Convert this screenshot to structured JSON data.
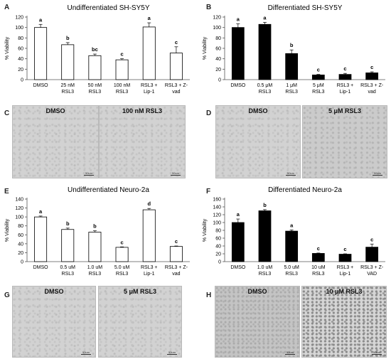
{
  "panels": {
    "A": "A",
    "B": "B",
    "C": "C",
    "D": "D",
    "E": "E",
    "F": "F",
    "G": "G",
    "H": "H"
  },
  "images": {
    "C": [
      {
        "label": "DMSO",
        "scale": "50um"
      },
      {
        "label": "100 nM RSL3",
        "scale": "50um"
      }
    ],
    "D": [
      {
        "label": "DMSO",
        "scale": "50um"
      },
      {
        "label": "5 μM RSL3",
        "scale": "50um"
      }
    ],
    "G": [
      {
        "label": "DMSO",
        "scale": "50um"
      },
      {
        "label": "5 μM RSL3",
        "scale": "50um"
      }
    ],
    "H": [
      {
        "label": "DMSO",
        "scale": "50um"
      },
      {
        "label": "10 μM RSL3",
        "scale": "50um"
      }
    ]
  },
  "chart_data": [
    {
      "panel": "A",
      "type": "bar",
      "title": "Undifferentiated SH-SY5Y",
      "ylabel": "% Viability",
      "ylim": [
        0,
        120
      ],
      "yticks": [
        0,
        20,
        40,
        60,
        80,
        100,
        120
      ],
      "bar_color": "#ffffff",
      "categories": [
        [
          "DMSO"
        ],
        [
          "25 nM",
          "RSL3"
        ],
        [
          "50 nM",
          "RSL3"
        ],
        [
          "100 nM",
          "RSL3"
        ],
        [
          "RSL3 +",
          "Lip-1"
        ],
        [
          "RSL3 + Z-",
          "vad"
        ]
      ],
      "values": [
        100,
        67,
        46,
        38,
        101,
        51
      ],
      "errors": [
        6,
        4,
        3,
        2,
        8,
        12
      ],
      "letters": [
        "a",
        "b",
        "bc",
        "c",
        "a",
        "c"
      ]
    },
    {
      "panel": "B",
      "type": "bar",
      "title": "Differentiated SH-SY5Y",
      "ylabel": "% Viability",
      "ylim": [
        0,
        120
      ],
      "yticks": [
        0,
        20,
        40,
        60,
        80,
        100,
        120
      ],
      "bar_color": "#000000",
      "categories": [
        [
          "DMSO"
        ],
        [
          "0.5 μM",
          "RSL3"
        ],
        [
          "1 μM",
          "RSL3"
        ],
        [
          "5 μM",
          "RSL3"
        ],
        [
          "RSL3 +",
          "Lip-1"
        ],
        [
          "RSL3 + Z-",
          "vad"
        ]
      ],
      "values": [
        100,
        106,
        50,
        9,
        10,
        13
      ],
      "errors": [
        7,
        4,
        7,
        1,
        2,
        2
      ],
      "letters": [
        "a",
        "a",
        "b",
        "c",
        "c",
        "c"
      ]
    },
    {
      "panel": "E",
      "type": "bar",
      "title": "Undifferentiated Neuro-2a",
      "ylabel": "% Viability",
      "ylim": [
        0,
        140
      ],
      "yticks": [
        0,
        20,
        40,
        60,
        80,
        100,
        120,
        140
      ],
      "bar_color": "#ffffff",
      "categories": [
        [
          "DMSO"
        ],
        [
          "0.5 uM",
          "RSL3"
        ],
        [
          "1.0 uM",
          "RSL3"
        ],
        [
          "5.0 uM",
          "RSL3"
        ],
        [
          "RSL3 +",
          "Lip-1"
        ],
        [
          "RSL3 + Z-",
          "vad"
        ]
      ],
      "values": [
        100,
        72,
        66,
        32,
        116,
        34
      ],
      "errors": [
        2,
        3,
        3,
        1,
        3,
        1
      ],
      "letters": [
        "a",
        "b",
        "b",
        "c",
        "d",
        "c"
      ]
    },
    {
      "panel": "F",
      "type": "bar",
      "title": "Differentiated Neuro-2a",
      "ylabel": "% Viability",
      "ylim": [
        0,
        160
      ],
      "yticks": [
        0,
        20,
        40,
        60,
        80,
        100,
        120,
        140,
        160
      ],
      "bar_color": "#000000",
      "categories": [
        [
          "DMSO"
        ],
        [
          "1.0 uM",
          "RSL3"
        ],
        [
          "5.0 uM",
          "RSL3"
        ],
        [
          "10 uM",
          "RSL3"
        ],
        [
          "RSL3 +",
          "Lip-1"
        ],
        [
          "RSL3 + Z-",
          "VAD"
        ]
      ],
      "values": [
        100,
        130,
        78,
        21,
        19,
        37
      ],
      "errors": [
        9,
        3,
        3,
        1,
        1,
        8
      ],
      "letters": [
        "a",
        "b",
        "a",
        "c",
        "c",
        "c"
      ]
    }
  ]
}
